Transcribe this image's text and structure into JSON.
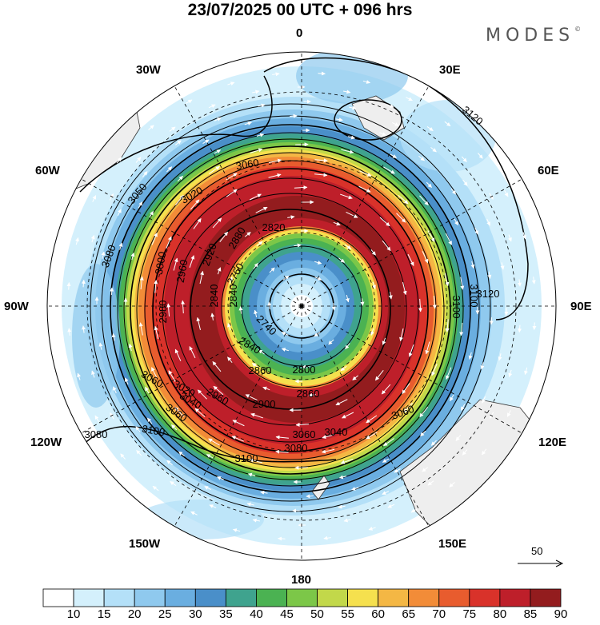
{
  "title": "23/07/2025  00 UTC  + 096 hrs",
  "brand": "MODES",
  "brand_mark": "©",
  "longitude_labels": {
    "lon_0": "0",
    "lon_30e": "30E",
    "lon_60e": "60E",
    "lon_90e": "90E",
    "lon_120e": "120E",
    "lon_150e": "150E",
    "lon_180": "180",
    "lon_150w": "150W",
    "lon_120w": "120W",
    "lon_90w": "90W",
    "lon_60w": "60W",
    "lon_30w": "30W"
  },
  "contour_labels": [
    "3120",
    "3120",
    "3100",
    "3080",
    "3060",
    "3050",
    "3060",
    "3080",
    "3060",
    "3060",
    "3040",
    "3020",
    "3000",
    "2980",
    "2960",
    "2920",
    "2880",
    "2840",
    "2840",
    "2820",
    "2800",
    "2760",
    "2740",
    "2840",
    "2860",
    "2860",
    "2900",
    "2960",
    "3020",
    "3040",
    "3060",
    "3080",
    "3100",
    "3100",
    "3100"
  ],
  "reference_vector": {
    "label": "50"
  },
  "colorbar": {
    "levels": [
      "10",
      "15",
      "20",
      "25",
      "30",
      "35",
      "40",
      "45",
      "50",
      "55",
      "60",
      "65",
      "70",
      "75",
      "80",
      "85",
      "90"
    ],
    "colors": [
      "#ffffff",
      "#d4f0fc",
      "#b4e0f8",
      "#8fc9ee",
      "#6aaee0",
      "#4a8fc9",
      "#3fa38e",
      "#4bb252",
      "#7cc748",
      "#c2d84a",
      "#f5e04e",
      "#f4b744",
      "#f28c38",
      "#e85c2e",
      "#d9322a",
      "#be1f2a",
      "#931c1e"
    ]
  },
  "accent_colors": {
    "contour": "#000000",
    "land": "#eeeeee",
    "vector": "#ffffff"
  }
}
